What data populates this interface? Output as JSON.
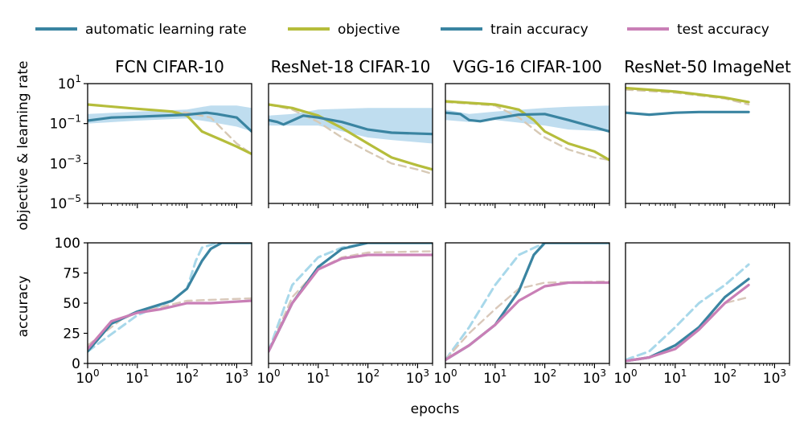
{
  "legend": [
    {
      "label": "automatic learning rate",
      "color": "#3a84a1"
    },
    {
      "label": "objective",
      "color": "#b5bd3b"
    },
    {
      "label": "train accuracy",
      "color": "#3a84a1"
    },
    {
      "label": "test accuracy",
      "color": "#c97fb6"
    }
  ],
  "xlabel": "epochs",
  "ylabel_top": "objective & learning rate",
  "ylabel_bottom": "accuracy",
  "colors": {
    "lr": "#3a84a1",
    "objective": "#b5bd3b",
    "train": "#3a84a1",
    "test": "#c97fb6",
    "band": "#a9d2ea",
    "baseline_train": "#a8d8ea",
    "baseline_obj": "#d7c9b5",
    "baseline_test": "#d9c8ba"
  },
  "chart_data": [
    {
      "type": "line",
      "title": "FCN CIFAR-10",
      "x_scale": "log",
      "xlim": [
        1,
        2000
      ],
      "top": {
        "y_scale": "log",
        "ylim": [
          1e-05,
          10
        ],
        "yticks": [
          {
            "base": "10",
            "exp": "1",
            "v": 10
          },
          {
            "base": "10",
            "exp": "−1",
            "v": 0.1
          },
          {
            "base": "10",
            "exp": "−3",
            "v": 0.001
          },
          {
            "base": "10",
            "exp": "−5",
            "v": 1e-05
          }
        ],
        "series": [
          {
            "role": "objective_baseline",
            "x": [
              1,
              10,
              100,
              300,
              1000,
              2000
            ],
            "y": [
              0.9,
              0.55,
              0.35,
              0.2,
              0.01,
              0.003
            ]
          },
          {
            "role": "objective",
            "x": [
              1,
              10,
              50,
              100,
              200,
              500,
              1000,
              2000
            ],
            "y": [
              0.9,
              0.55,
              0.4,
              0.25,
              0.04,
              0.015,
              0.007,
              0.003
            ]
          },
          {
            "role": "lr_band",
            "x": [
              1,
              10,
              100,
              300,
              1000,
              2000
            ],
            "lo": [
              0.1,
              0.14,
              0.18,
              0.12,
              0.07,
              0.04
            ],
            "hi": [
              0.3,
              0.4,
              0.5,
              0.8,
              0.8,
              0.6
            ]
          },
          {
            "role": "lr",
            "x": [
              1,
              3,
              10,
              100,
              250,
              400,
              1000,
              2000
            ],
            "y": [
              0.14,
              0.2,
              0.22,
              0.28,
              0.35,
              0.3,
              0.2,
              0.04
            ]
          }
        ]
      },
      "bottom": {
        "ylim": [
          0,
          100
        ],
        "yticks": [
          0,
          25,
          50,
          75,
          100
        ],
        "series": [
          {
            "role": "train_baseline",
            "x": [
              1,
              10,
              50,
              100,
              150,
              200,
              400,
              2000
            ],
            "y": [
              10,
              40,
              52,
              62,
              85,
              96,
              100,
              100
            ]
          },
          {
            "role": "test_baseline",
            "x": [
              1,
              5,
              10,
              100,
              2000
            ],
            "y": [
              15,
              37,
              42,
              52,
              54
            ]
          },
          {
            "role": "train",
            "x": [
              1,
              3,
              10,
              50,
              100,
              200,
              300,
              500,
              2000
            ],
            "y": [
              10,
              33,
              43,
              52,
              62,
              85,
              95,
              100,
              100
            ]
          },
          {
            "role": "test",
            "x": [
              1,
              3,
              10,
              30,
              100,
              300,
              2000
            ],
            "y": [
              12,
              35,
              42,
              45,
              50,
              50,
              52
            ]
          }
        ]
      },
      "xticks": [
        {
          "base": "10",
          "exp": "0",
          "v": 1
        },
        {
          "base": "10",
          "exp": "1",
          "v": 10
        },
        {
          "base": "10",
          "exp": "2",
          "v": 100
        },
        {
          "base": "10",
          "exp": "3",
          "v": 1000
        }
      ]
    },
    {
      "type": "line",
      "title": "ResNet-18 CIFAR-10",
      "x_scale": "log",
      "xlim": [
        1,
        2000
      ],
      "top": {
        "y_scale": "log",
        "ylim": [
          1e-05,
          10
        ],
        "yticks": [],
        "series": [
          {
            "role": "objective_baseline",
            "x": [
              1,
              3,
              10,
              30,
              100,
              300,
              1000,
              2000
            ],
            "y": [
              0.9,
              0.5,
              0.12,
              0.02,
              0.004,
              0.001,
              0.0005,
              0.0003
            ]
          },
          {
            "role": "objective",
            "x": [
              1,
              3,
              10,
              30,
              100,
              300,
              1000,
              2000
            ],
            "y": [
              0.9,
              0.6,
              0.25,
              0.06,
              0.01,
              0.002,
              0.0008,
              0.0005
            ]
          },
          {
            "role": "lr_band",
            "x": [
              1,
              3,
              10,
              100,
              300,
              2000
            ],
            "lo": [
              0.08,
              0.08,
              0.08,
              0.02,
              0.015,
              0.01
            ],
            "hi": [
              0.25,
              0.3,
              0.5,
              0.6,
              0.6,
              0.6
            ]
          },
          {
            "role": "lr",
            "x": [
              1,
              1.5,
              2,
              3,
              5,
              10,
              30,
              100,
              300,
              2000
            ],
            "y": [
              0.15,
              0.12,
              0.09,
              0.14,
              0.25,
              0.2,
              0.12,
              0.05,
              0.035,
              0.03
            ]
          }
        ]
      },
      "bottom": {
        "ylim": [
          0,
          100
        ],
        "yticks": [],
        "series": [
          {
            "role": "train_baseline",
            "x": [
              1,
              3,
              10,
              30,
              100,
              2000
            ],
            "y": [
              10,
              65,
              88,
              96,
              100,
              100
            ]
          },
          {
            "role": "test_baseline",
            "x": [
              1,
              3,
              10,
              30,
              100,
              2000
            ],
            "y": [
              10,
              55,
              78,
              88,
              92,
              93
            ]
          },
          {
            "role": "train",
            "x": [
              1,
              3,
              10,
              30,
              100,
              2000
            ],
            "y": [
              10,
              50,
              80,
              95,
              100,
              100
            ]
          },
          {
            "role": "test",
            "x": [
              1,
              3,
              10,
              30,
              100,
              2000
            ],
            "y": [
              10,
              50,
              78,
              87,
              90,
              90
            ]
          }
        ]
      },
      "xticks": [
        {
          "base": "10",
          "exp": "0",
          "v": 1
        },
        {
          "base": "10",
          "exp": "1",
          "v": 10
        },
        {
          "base": "10",
          "exp": "2",
          "v": 100
        },
        {
          "base": "10",
          "exp": "3",
          "v": 1000
        }
      ]
    },
    {
      "type": "line",
      "title": "VGG-16 CIFAR-100",
      "x_scale": "log",
      "xlim": [
        1,
        2000
      ],
      "top": {
        "y_scale": "log",
        "ylim": [
          1e-05,
          10
        ],
        "yticks": [],
        "series": [
          {
            "role": "objective_baseline",
            "x": [
              1,
              10,
              30,
              100,
              300,
              1000,
              2000
            ],
            "y": [
              1.2,
              0.8,
              0.2,
              0.02,
              0.005,
              0.002,
              0.0015
            ]
          },
          {
            "role": "objective",
            "x": [
              1,
              10,
              30,
              60,
              100,
              300,
              1000,
              2000
            ],
            "y": [
              1.3,
              0.9,
              0.5,
              0.15,
              0.04,
              0.01,
              0.004,
              0.0015
            ]
          },
          {
            "role": "lr_band",
            "x": [
              1,
              3,
              10,
              100,
              300,
              2000
            ],
            "lo": [
              0.15,
              0.12,
              0.15,
              0.08,
              0.05,
              0.04
            ],
            "hi": [
              0.5,
              0.3,
              0.4,
              0.6,
              0.7,
              0.8
            ]
          },
          {
            "role": "lr",
            "x": [
              1,
              2,
              3,
              5,
              10,
              30,
              100,
              300,
              2000
            ],
            "y": [
              0.35,
              0.3,
              0.15,
              0.13,
              0.18,
              0.28,
              0.3,
              0.15,
              0.04
            ]
          }
        ]
      },
      "bottom": {
        "ylim": [
          0,
          100
        ],
        "yticks": [],
        "series": [
          {
            "role": "train_baseline",
            "x": [
              1,
              3,
              10,
              30,
              100,
              2000
            ],
            "y": [
              3,
              30,
              65,
              90,
              100,
              100
            ]
          },
          {
            "role": "test_baseline",
            "x": [
              1,
              3,
              10,
              30,
              100,
              2000
            ],
            "y": [
              3,
              25,
              45,
              62,
              67,
              68
            ]
          },
          {
            "role": "train",
            "x": [
              1,
              3,
              10,
              30,
              60,
              100,
              2000
            ],
            "y": [
              3,
              15,
              32,
              60,
              90,
              100,
              100
            ]
          },
          {
            "role": "test",
            "x": [
              1,
              3,
              10,
              30,
              100,
              300,
              2000
            ],
            "y": [
              3,
              15,
              32,
              52,
              64,
              67,
              67
            ]
          }
        ]
      },
      "xticks": [
        {
          "base": "10",
          "exp": "0",
          "v": 1
        },
        {
          "base": "10",
          "exp": "1",
          "v": 10
        },
        {
          "base": "10",
          "exp": "2",
          "v": 100
        },
        {
          "base": "10",
          "exp": "3",
          "v": 1000
        }
      ]
    },
    {
      "type": "line",
      "title": "ResNet-50 ImageNet",
      "x_scale": "log",
      "xlim": [
        1,
        2000
      ],
      "top": {
        "y_scale": "log",
        "ylim": [
          1e-05,
          10
        ],
        "yticks": [],
        "series": [
          {
            "role": "objective_baseline",
            "x": [
              1,
              10,
              100,
              300
            ],
            "y": [
              5,
              3.5,
              1.8,
              0.9
            ]
          },
          {
            "role": "objective",
            "x": [
              1,
              10,
              100,
              300
            ],
            "y": [
              6,
              4,
              2,
              1.2
            ]
          },
          {
            "role": "lr",
            "x": [
              1,
              3,
              10,
              30,
              100,
              300
            ],
            "y": [
              0.35,
              0.28,
              0.35,
              0.38,
              0.38,
              0.38
            ]
          }
        ]
      },
      "bottom": {
        "ylim": [
          0,
          100
        ],
        "yticks": [],
        "series": [
          {
            "role": "train_baseline",
            "x": [
              1,
              3,
              10,
              30,
              100,
              300
            ],
            "y": [
              3,
              10,
              30,
              50,
              65,
              82
            ]
          },
          {
            "role": "test_baseline",
            "x": [
              1,
              3,
              10,
              30,
              100,
              300
            ],
            "y": [
              2,
              5,
              12,
              30,
              50,
              55
            ]
          },
          {
            "role": "train",
            "x": [
              1,
              3,
              10,
              30,
              100,
              300
            ],
            "y": [
              2,
              5,
              15,
              30,
              55,
              70
            ]
          },
          {
            "role": "test",
            "x": [
              1,
              3,
              10,
              30,
              100,
              300
            ],
            "y": [
              2,
              5,
              12,
              28,
              50,
              65
            ]
          }
        ]
      },
      "xticks": [
        {
          "base": "10",
          "exp": "0",
          "v": 1
        },
        {
          "base": "10",
          "exp": "1",
          "v": 10
        },
        {
          "base": "10",
          "exp": "2",
          "v": 100
        },
        {
          "base": "10",
          "exp": "3",
          "v": 1000
        }
      ]
    }
  ]
}
